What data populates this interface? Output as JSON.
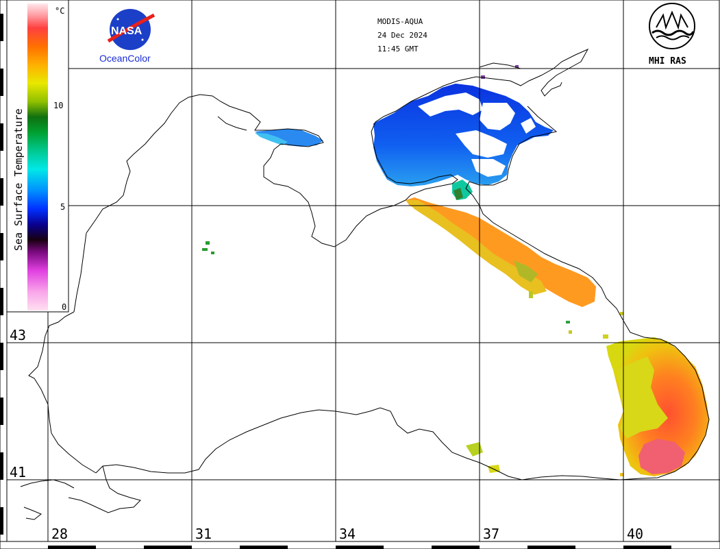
{
  "product": {
    "sensor": "MODIS-AQUA",
    "date": "24 Dec 2024",
    "time": "11:45 GMT"
  },
  "logos": {
    "nasa_text": "NASA",
    "oceancolor": "OceanColor",
    "mhi": "MHI RAS"
  },
  "colorbar": {
    "title": "Sea Surface Temperature",
    "unit": "°C",
    "ticks": [
      "10",
      "5",
      "0"
    ],
    "stops": [
      "#ffe0f0",
      "#f9a6ea",
      "#e040e0",
      "#7a0a80",
      "#180010",
      "#0a0090",
      "#0030ff",
      "#0090ff",
      "#00e8e8",
      "#00c890",
      "#00a030",
      "#107010",
      "#90c000",
      "#e8e800",
      "#ffb000",
      "#ff7000",
      "#ff4040",
      "#ff9aa0",
      "#ffe8ec"
    ]
  },
  "axes": {
    "lon_labels": [
      "28",
      "31",
      "34",
      "37",
      "40"
    ],
    "lat_labels": [
      "43",
      "41"
    ]
  }
}
